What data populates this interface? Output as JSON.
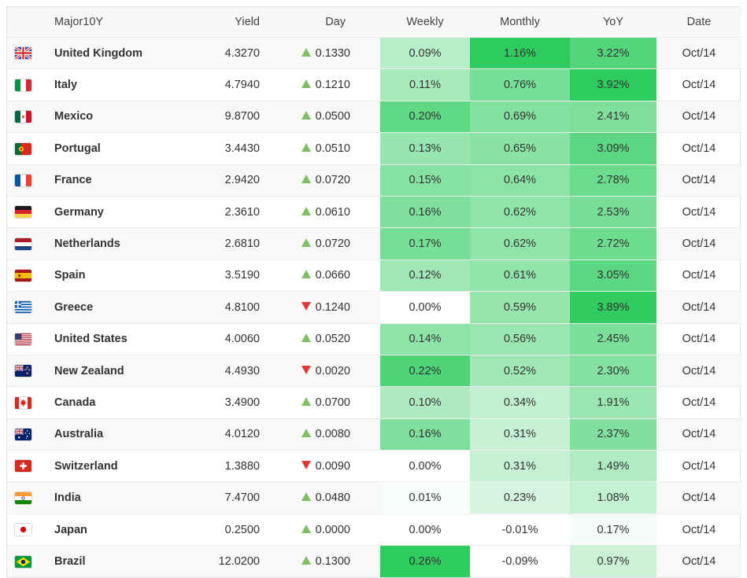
{
  "colors": {
    "heat_base_green": "#2ECC5E",
    "up_triangle": "#7CC05F",
    "down_triangle": "#E03A34",
    "header_bg": "#F7F7F7",
    "row_stripe_bg": "#F8F8F8",
    "row_border": "#ECECEC",
    "outer_border": "#E3E3E3",
    "text": "#333333",
    "header_text": "#444444"
  },
  "heat": {
    "column_max": {
      "weekly": 0.26,
      "monthly": 1.16,
      "yoy": 3.92
    }
  },
  "table": {
    "headers": {
      "major10y": "Major10Y",
      "yield": "Yield",
      "day": "Day",
      "weekly": "Weekly",
      "monthly": "Monthly",
      "yoy": "YoY",
      "date": "Date"
    },
    "rows": [
      {
        "flag": "gb",
        "country": "United Kingdom",
        "yield": "4.3270",
        "day_change": "0.1330",
        "day_direction": "up",
        "weekly": 0.09,
        "monthly": 1.16,
        "yoy": 3.22,
        "date": "Oct/14"
      },
      {
        "flag": "it",
        "country": "Italy",
        "yield": "4.7940",
        "day_change": "0.1210",
        "day_direction": "up",
        "weekly": 0.11,
        "monthly": 0.76,
        "yoy": 3.92,
        "date": "Oct/14"
      },
      {
        "flag": "mx",
        "country": "Mexico",
        "yield": "9.8700",
        "day_change": "0.0500",
        "day_direction": "up",
        "weekly": 0.2,
        "monthly": 0.69,
        "yoy": 2.41,
        "date": "Oct/14"
      },
      {
        "flag": "pt",
        "country": "Portugal",
        "yield": "3.4430",
        "day_change": "0.0510",
        "day_direction": "up",
        "weekly": 0.13,
        "monthly": 0.65,
        "yoy": 3.09,
        "date": "Oct/14"
      },
      {
        "flag": "fr",
        "country": "France",
        "yield": "2.9420",
        "day_change": "0.0720",
        "day_direction": "up",
        "weekly": 0.15,
        "monthly": 0.64,
        "yoy": 2.78,
        "date": "Oct/14"
      },
      {
        "flag": "de",
        "country": "Germany",
        "yield": "2.3610",
        "day_change": "0.0610",
        "day_direction": "up",
        "weekly": 0.16,
        "monthly": 0.62,
        "yoy": 2.53,
        "date": "Oct/14"
      },
      {
        "flag": "nl",
        "country": "Netherlands",
        "yield": "2.6810",
        "day_change": "0.0720",
        "day_direction": "up",
        "weekly": 0.17,
        "monthly": 0.62,
        "yoy": 2.72,
        "date": "Oct/14"
      },
      {
        "flag": "es",
        "country": "Spain",
        "yield": "3.5190",
        "day_change": "0.0660",
        "day_direction": "up",
        "weekly": 0.12,
        "monthly": 0.61,
        "yoy": 3.05,
        "date": "Oct/14"
      },
      {
        "flag": "gr",
        "country": "Greece",
        "yield": "4.8100",
        "day_change": "0.1240",
        "day_direction": "down",
        "weekly": 0.0,
        "monthly": 0.59,
        "yoy": 3.89,
        "date": "Oct/14"
      },
      {
        "flag": "us",
        "country": "United States",
        "yield": "4.0060",
        "day_change": "0.0520",
        "day_direction": "up",
        "weekly": 0.14,
        "monthly": 0.56,
        "yoy": 2.45,
        "date": "Oct/14"
      },
      {
        "flag": "nz",
        "country": "New Zealand",
        "yield": "4.4930",
        "day_change": "0.0020",
        "day_direction": "down",
        "weekly": 0.22,
        "monthly": 0.52,
        "yoy": 2.3,
        "date": "Oct/14"
      },
      {
        "flag": "ca",
        "country": "Canada",
        "yield": "3.4900",
        "day_change": "0.0700",
        "day_direction": "up",
        "weekly": 0.1,
        "monthly": 0.34,
        "yoy": 1.91,
        "date": "Oct/14"
      },
      {
        "flag": "au",
        "country": "Australia",
        "yield": "4.0120",
        "day_change": "0.0080",
        "day_direction": "up",
        "weekly": 0.16,
        "monthly": 0.31,
        "yoy": 2.37,
        "date": "Oct/14"
      },
      {
        "flag": "ch",
        "country": "Switzerland",
        "yield": "1.3880",
        "day_change": "0.0090",
        "day_direction": "down",
        "weekly": 0.0,
        "monthly": 0.31,
        "yoy": 1.49,
        "date": "Oct/14"
      },
      {
        "flag": "in",
        "country": "India",
        "yield": "7.4700",
        "day_change": "0.0480",
        "day_direction": "up",
        "weekly": 0.01,
        "monthly": 0.23,
        "yoy": 1.08,
        "date": "Oct/14"
      },
      {
        "flag": "jp",
        "country": "Japan",
        "yield": "0.2500",
        "day_change": "0.0000",
        "day_direction": "up",
        "weekly": 0.0,
        "monthly": -0.01,
        "yoy": 0.17,
        "date": "Oct/14"
      },
      {
        "flag": "br",
        "country": "Brazil",
        "yield": "12.0200",
        "day_change": "0.1300",
        "day_direction": "up",
        "weekly": 0.26,
        "monthly": -0.09,
        "yoy": 0.97,
        "date": "Oct/14"
      }
    ]
  }
}
